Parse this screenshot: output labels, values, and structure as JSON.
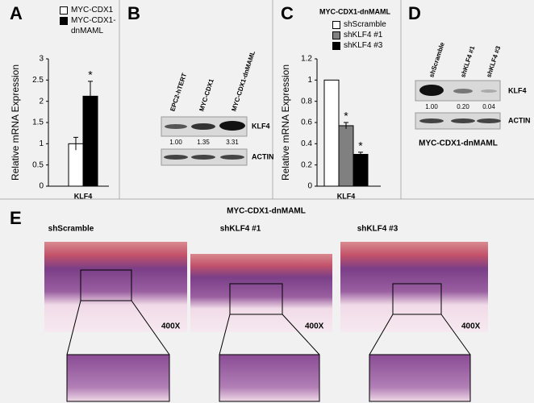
{
  "panel_labels": [
    "A",
    "B",
    "C",
    "D",
    "E"
  ],
  "chart_data": [
    {
      "type": "bar",
      "ylabel": "Relative mRNA Expression",
      "categories": [
        "KLF4"
      ],
      "ylim": [
        0,
        3
      ],
      "yticks": [
        0,
        0.5,
        1,
        1.5,
        2,
        2.5,
        3
      ],
      "series": [
        {
          "name": "MYC-CDX1",
          "color": "#ffffff",
          "values": [
            1.0
          ],
          "errors": [
            0.15
          ]
        },
        {
          "name": "MYC-CDX1-dnMAML",
          "color": "#000000",
          "values": [
            2.12
          ],
          "errors": [
            0.35
          ],
          "marker_text": "*"
        }
      ]
    },
    {
      "type": "bar",
      "title": "MYC-CDX1-dnMAML",
      "ylabel": "Relative mRNA Expression",
      "categories": [
        "KLF4"
      ],
      "ylim": [
        0,
        1.2
      ],
      "yticks": [
        0,
        0.2,
        0.4,
        0.6,
        0.8,
        1,
        1.2
      ],
      "series": [
        {
          "name": "shScramble",
          "color": "#ffffff",
          "values": [
            1.0
          ]
        },
        {
          "name": "shKLF4 #1",
          "color": "#808080",
          "values": [
            0.57
          ],
          "errors": [
            0.03
          ],
          "marker_text": "*"
        },
        {
          "name": "shKLF4 #3",
          "color": "#000000",
          "values": [
            0.3
          ],
          "errors": [
            0.02
          ],
          "marker_text": "*"
        }
      ]
    }
  ],
  "blots": [
    {
      "lanes": [
        "EPC2-hTERT",
        "MYC-CDX1",
        "MYC-CDX1-dnMAML"
      ],
      "bands": [
        "KLF4",
        "ACTIN"
      ],
      "quant": [
        "1.00",
        "1.35",
        "3.31"
      ]
    },
    {
      "lanes": [
        "shScramble",
        "shKLF4 #1",
        "shKLF4 #3"
      ],
      "bands": [
        "KLF4",
        "ACTIN"
      ],
      "quant": [
        "1.00",
        "0.20",
        "0.04"
      ],
      "caption": "MYC-CDX1-dnMAML"
    }
  ],
  "histology": {
    "title": "MYC-CDX1-dnMAML",
    "columns": [
      "shScramble",
      "shKLF4 #1",
      "shKLF4 #3"
    ],
    "magnification": [
      "400X",
      "400X",
      "400X"
    ]
  }
}
